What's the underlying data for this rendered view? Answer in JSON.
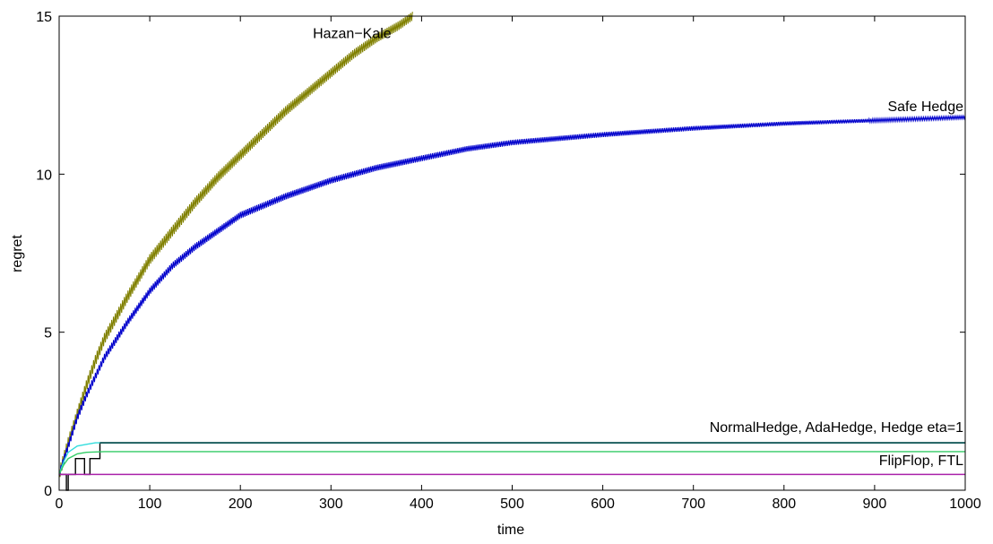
{
  "chart_data": {
    "type": "line",
    "xlabel": "time",
    "ylabel": "regret",
    "xlim": [
      0,
      1000
    ],
    "ylim": [
      0,
      15
    ],
    "xticks": [
      0,
      100,
      200,
      300,
      400,
      500,
      600,
      700,
      800,
      900,
      1000
    ],
    "yticks": [
      0,
      5,
      10,
      15
    ],
    "grid": false,
    "annotations": [
      {
        "text": "Hazan−Kale",
        "x": 280,
        "y": 14.3
      },
      {
        "text": "Safe Hedge",
        "x": 1000,
        "y": 12.0
      },
      {
        "text": "NormalHedge, AdaHedge, Hedge eta=1",
        "x": 1000,
        "y": 1.85
      },
      {
        "text": "FlipFlop, FTL",
        "x": 1000,
        "y": 0.8
      }
    ],
    "series": [
      {
        "color": "#808000",
        "x": [
          0,
          10,
          20,
          30,
          40,
          50,
          75,
          100,
          125,
          150,
          175,
          200,
          225,
          250,
          275,
          300,
          325,
          350,
          375,
          390
        ],
        "y": [
          0.5,
          1.5,
          2.4,
          3.3,
          4.1,
          4.8,
          6.1,
          7.3,
          8.2,
          9.1,
          9.9,
          10.6,
          11.3,
          12.0,
          12.6,
          13.2,
          13.8,
          14.3,
          14.7,
          15.0
        ],
        "amplitude": 0.18
      },
      {
        "color": "#0000cc",
        "x": [
          0,
          10,
          20,
          30,
          40,
          50,
          75,
          100,
          125,
          150,
          175,
          200,
          250,
          300,
          350,
          400,
          450,
          500,
          600,
          700,
          800,
          900,
          1000
        ],
        "y": [
          0.5,
          1.4,
          2.3,
          3.0,
          3.6,
          4.2,
          5.3,
          6.3,
          7.1,
          7.7,
          8.2,
          8.7,
          9.3,
          9.8,
          10.2,
          10.5,
          10.8,
          11.0,
          11.25,
          11.45,
          11.6,
          11.7,
          11.8
        ],
        "amplitude": 0.12
      },
      {
        "color": "#000000",
        "step": true,
        "x": [
          0,
          8,
          8,
          10,
          10,
          18,
          18,
          28,
          28,
          34,
          34,
          45,
          45,
          1000
        ],
        "y": [
          0.5,
          0.5,
          0,
          0,
          0.5,
          0.5,
          1.0,
          1.0,
          0.5,
          0.5,
          1.0,
          1.0,
          1.5,
          1.5
        ]
      },
      {
        "color": "#33dddd",
        "x": [
          0,
          5,
          10,
          20,
          30,
          40,
          50,
          100,
          1000
        ],
        "y": [
          0.5,
          0.9,
          1.2,
          1.4,
          1.45,
          1.5,
          1.5,
          1.5,
          1.5
        ]
      },
      {
        "color": "#33cc66",
        "x": [
          0,
          5,
          10,
          20,
          30,
          50,
          100,
          1000
        ],
        "y": [
          0.5,
          0.8,
          1.0,
          1.15,
          1.2,
          1.22,
          1.22,
          1.22
        ]
      },
      {
        "color": "#004040",
        "x": [
          45,
          1000
        ],
        "y": [
          1.5,
          1.5
        ]
      },
      {
        "color": "#aa22aa",
        "x": [
          0,
          10,
          1000
        ],
        "y": [
          0.5,
          0.5,
          0.5
        ]
      }
    ]
  }
}
